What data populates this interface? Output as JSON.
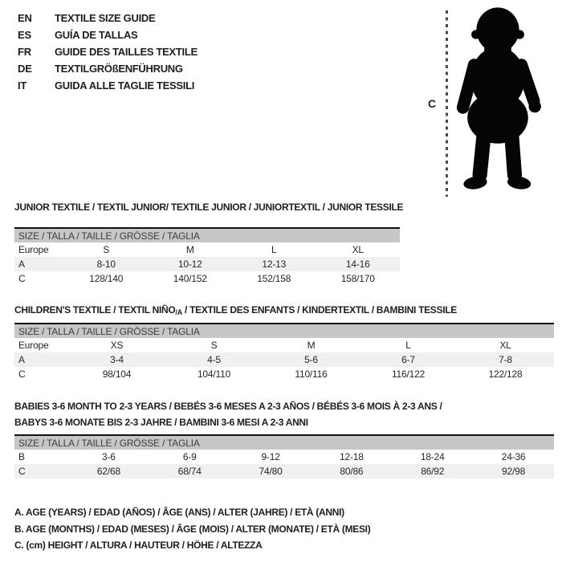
{
  "colors": {
    "header_bar": "#c7c7c7",
    "shaded_row": "#f0f0f0",
    "top_rule": "#111111",
    "text": "#1e1e1e",
    "silhouette": "#050505"
  },
  "languages": [
    {
      "code": "EN",
      "label": "TEXTILE SIZE GUIDE"
    },
    {
      "code": "ES",
      "label": "GUÍA DE TALLAS"
    },
    {
      "code": "FR",
      "label": "GUIDE DES TAILLES TEXTILE"
    },
    {
      "code": "DE",
      "label": "TEXTILGRÖßENFÜHRUNG"
    },
    {
      "code": "IT",
      "label": "GUIDA ALLE TAGLIE TESSILI"
    }
  ],
  "figure": {
    "icon": "toddler-silhouette-icon",
    "measure_label": "C"
  },
  "sections": [
    {
      "title": "JUNIOR TEXTILE / TEXTIL JUNIOR/ TEXTILE JUNIOR / JUNIORTEXTIL / JUNIOR TESSILE",
      "table": {
        "header": "SIZE / TALLA / TAILLE / GRÖSSE / TAGLIA",
        "rows": [
          {
            "shaded": false,
            "cells": [
              "Europe",
              "S",
              "M",
              "L",
              "XL"
            ]
          },
          {
            "shaded": true,
            "cells": [
              "A",
              "8-10",
              "10-12",
              "12-13",
              "14-16"
            ]
          },
          {
            "shaded": false,
            "cells": [
              "C",
              "128/140",
              "140/152",
              "152/158",
              "158/170"
            ]
          }
        ]
      }
    },
    {
      "title_pre": "CHILDREN'S TEXTILE / TEXTIL NIÑO",
      "title_sub": "/A",
      "title_post": " / TEXTILE DES ENFANTS / KINDERTEXTIL / BAMBINI TESSILE",
      "table": {
        "header": "SIZE / TALLA / TAILLE / GRÖSSE / TAGLIA",
        "rows": [
          {
            "shaded": false,
            "cells": [
              "Europe",
              "XS",
              "S",
              "M",
              "L",
              "XL"
            ]
          },
          {
            "shaded": true,
            "cells": [
              "A",
              "3-4",
              "4-5",
              "5-6",
              "6-7",
              "7-8"
            ]
          },
          {
            "shaded": false,
            "cells": [
              "C",
              "98/104",
              "104/110",
              "110/116",
              "116/122",
              "122/128"
            ]
          }
        ]
      }
    },
    {
      "title_lines": [
        "BABIES 3-6 MONTH TO 2-3 YEARS / BEBÉS 3-6 MESES A 2-3 AÑOS / BÉBÉS 3-6 MOIS À 2-3 ANS /",
        "BABYS 3-6 MONATE BIS 2-3 JAHRE / BAMBINI 3-6 MESI A 2-3 ANNI"
      ],
      "table": {
        "header": "SIZE / TALLA / TAILLE / GRÖSSE / TAGLIA",
        "rows": [
          {
            "shaded": false,
            "cells": [
              "B",
              "3-6",
              "6-9",
              "9-12",
              "12-18",
              "18-24",
              "24-36"
            ]
          },
          {
            "shaded": true,
            "cells": [
              "C",
              "62/68",
              "68/74",
              "74/80",
              "80/86",
              "86/92",
              "92/98"
            ]
          }
        ]
      }
    }
  ],
  "footnotes": [
    "A. AGE (YEARS) / EDAD (AÑOS) / ÂGE (ANS) / ALTER (JAHRE) / ETÀ (ANNI)",
    "B. AGE (MONTHS) / EDAD (MESES) / ÂGE (MOIS) / ALTER (MONATE) / ETÀ (MESI)",
    "C. (cm) HEIGHT / ALTURA / HAUTEUR / HÖHE / ALTEZZA"
  ]
}
